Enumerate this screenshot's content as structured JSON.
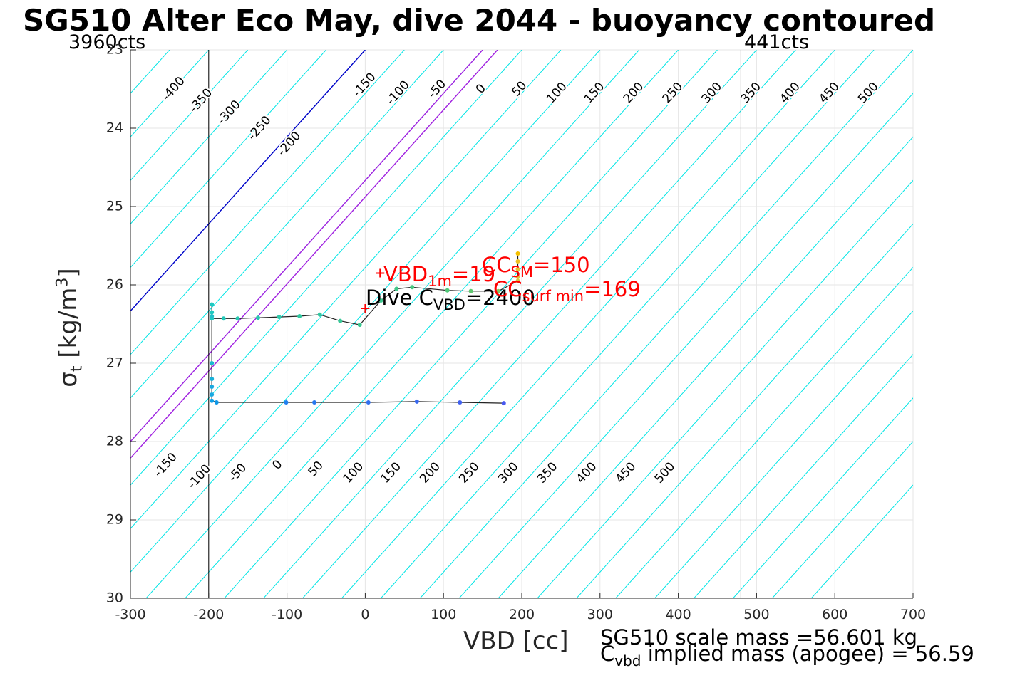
{
  "title": "SG510 Alter Eco May, dive 2044 - buoyancy contoured",
  "vbd_left_label": "3960cts",
  "vbd_right_label": "441cts",
  "xlabel": "VBD [cc]",
  "ylabel": {
    "base": "σ",
    "sub": "t",
    "unit_pre": "[kg/m",
    "unit_sup": "3",
    "unit_post": "]"
  },
  "footer": {
    "scale_mass": "SG510 scale mass =56.601 kg",
    "implied_pre": "C",
    "implied_sub": "vbd",
    "implied_post": " implied mass (apogee) = 56.59"
  },
  "annotations": {
    "vbd1m_pre": "VBD",
    "vbd1m_sub": "1m",
    "vbd1m_post": "=19",
    "dive_pre": "Dive C",
    "dive_sub": "VBD",
    "dive_post": "=2400",
    "ccsm_pre": "CC",
    "ccsm_sub": "SM",
    "ccsm_post": "=150",
    "ccsurf_pre": "CC",
    "ccsurf_sub": "surf min",
    "ccsurf_post": "=169"
  },
  "colors": {
    "contour": "#00e5e5",
    "zero_line": "#0000c8",
    "cc_line": "#a020e0",
    "annotation": "#ff0000",
    "trace": "#222222",
    "grid": "#e6e6e6"
  },
  "chart_data": {
    "type": "scatter",
    "xlim": [
      -300,
      700
    ],
    "ylim": [
      23,
      30
    ],
    "y_reversed": true,
    "xticks": [
      -300,
      -200,
      -100,
      0,
      100,
      200,
      300,
      400,
      500,
      600,
      700
    ],
    "xtick_labels": [
      "-300",
      "-200",
      "-100",
      "0",
      "100",
      "200",
      "300",
      "400",
      "500",
      "600",
      "700"
    ],
    "yticks": [
      23,
      24,
      25,
      26,
      27,
      28,
      29,
      30
    ],
    "ytick_labels": [
      "23",
      "24",
      "25",
      "26",
      "27",
      "28",
      "29",
      "30"
    ],
    "grid": true,
    "contour_slope_cc_per_sigma": 90,
    "contour_levels": [
      -500,
      -450,
      -400,
      -350,
      -300,
      -250,
      -200,
      -150,
      -100,
      -50,
      0,
      50,
      100,
      150,
      200,
      250,
      300,
      350,
      400,
      450,
      500,
      550,
      600,
      650,
      700,
      750,
      800,
      850,
      900,
      950,
      1000,
      1050,
      1100,
      1150,
      1200
    ],
    "zero_contour_level": 0,
    "cc_contour_levels": [
      150,
      169
    ],
    "vbd_limit_lines": [
      -200,
      480
    ],
    "contour_labels_top": [
      {
        "level": -400,
        "text": "-400",
        "x": -245,
        "y": 23.5
      },
      {
        "level": -350,
        "text": "-350",
        "x": -210,
        "y": 23.65
      },
      {
        "level": -300,
        "text": "-300",
        "x": -174,
        "y": 23.8
      },
      {
        "level": -250,
        "text": "-250",
        "x": -135,
        "y": 24.0
      },
      {
        "level": -200,
        "text": "-200",
        "x": -97,
        "y": 24.2
      },
      {
        "level": -150,
        "text": "-150",
        "x": -1,
        "y": 23.45
      },
      {
        "level": -100,
        "text": "-100",
        "x": 42,
        "y": 23.55
      },
      {
        "level": -50,
        "text": "-50",
        "x": 92,
        "y": 23.5
      },
      {
        "level": 0,
        "text": "0",
        "x": 148,
        "y": 23.5
      },
      {
        "level": 50,
        "text": "50",
        "x": 197,
        "y": 23.5
      },
      {
        "level": 100,
        "text": "100",
        "x": 245,
        "y": 23.55
      },
      {
        "level": 150,
        "text": "150",
        "x": 293,
        "y": 23.55
      },
      {
        "level": 200,
        "text": "200",
        "x": 343,
        "y": 23.55
      },
      {
        "level": 250,
        "text": "250",
        "x": 393,
        "y": 23.55
      },
      {
        "level": 300,
        "text": "300",
        "x": 443,
        "y": 23.55
      },
      {
        "level": 350,
        "text": "350",
        "x": 493,
        "y": 23.55
      },
      {
        "level": 400,
        "text": "400",
        "x": 543,
        "y": 23.55
      },
      {
        "level": 450,
        "text": "450",
        "x": 593,
        "y": 23.55
      },
      {
        "level": 500,
        "text": "500",
        "x": 643,
        "y": 23.55
      }
    ],
    "contour_labels_bottom": [
      {
        "level": -150,
        "text": "-150",
        "x": -255,
        "y": 28.3
      },
      {
        "level": -100,
        "text": "-100",
        "x": -212,
        "y": 28.45
      },
      {
        "level": -50,
        "text": "-50",
        "x": -163,
        "y": 28.4
      },
      {
        "level": 0,
        "text": "0",
        "x": -112,
        "y": 28.3
      },
      {
        "level": 50,
        "text": "50",
        "x": -63,
        "y": 28.35
      },
      {
        "level": 100,
        "text": "100",
        "x": -15,
        "y": 28.4
      },
      {
        "level": 150,
        "text": "150",
        "x": 33,
        "y": 28.4
      },
      {
        "level": 200,
        "text": "200",
        "x": 83,
        "y": 28.4
      },
      {
        "level": 250,
        "text": "250",
        "x": 133,
        "y": 28.4
      },
      {
        "level": 300,
        "text": "300",
        "x": 183,
        "y": 28.4
      },
      {
        "level": 350,
        "text": "350",
        "x": 233,
        "y": 28.4
      },
      {
        "level": 400,
        "text": "400",
        "x": 283,
        "y": 28.4
      },
      {
        "level": 450,
        "text": "450",
        "x": 333,
        "y": 28.4
      },
      {
        "level": 500,
        "text": "500",
        "x": 383,
        "y": 28.4
      }
    ],
    "dive_trace": [
      {
        "x": 195,
        "y": 25.6,
        "color": "#f5c000"
      },
      {
        "x": 195,
        "y": 25.7,
        "color": "#f0c020"
      },
      {
        "x": 195,
        "y": 25.8,
        "color": "#e8c030"
      },
      {
        "x": 195,
        "y": 25.9,
        "color": "#e0c040"
      },
      {
        "x": 195,
        "y": 25.95,
        "color": "#d8c040"
      },
      {
        "x": 170,
        "y": 26.08,
        "color": "#80c860"
      },
      {
        "x": 135,
        "y": 26.08,
        "color": "#60c870"
      },
      {
        "x": 105,
        "y": 26.07,
        "color": "#50c878"
      },
      {
        "x": 60,
        "y": 26.03,
        "color": "#48c880"
      },
      {
        "x": 40,
        "y": 26.05,
        "color": "#40c888"
      },
      {
        "x": 20,
        "y": 26.2,
        "color": "#40c890"
      },
      {
        "x": -7,
        "y": 26.51,
        "color": "#38c890"
      },
      {
        "x": -32,
        "y": 26.46,
        "color": "#38c898"
      },
      {
        "x": -58,
        "y": 26.38,
        "color": "#30c8a0"
      },
      {
        "x": -84,
        "y": 26.4,
        "color": "#30c8a0"
      },
      {
        "x": -110,
        "y": 26.41,
        "color": "#30c8a8"
      },
      {
        "x": -137,
        "y": 26.42,
        "color": "#28c8b0"
      },
      {
        "x": -163,
        "y": 26.43,
        "color": "#28c8b0"
      },
      {
        "x": -181,
        "y": 26.43,
        "color": "#20c8b8"
      },
      {
        "x": -196,
        "y": 26.43,
        "color": "#20c8c0"
      },
      {
        "x": -196,
        "y": 26.35,
        "color": "#20c8c0"
      },
      {
        "x": -196,
        "y": 26.25,
        "color": "#20c8c0"
      },
      {
        "x": -196,
        "y": 26.4,
        "color": "#20c0c8"
      },
      {
        "x": -196,
        "y": 27.0,
        "color": "#18b8d0"
      },
      {
        "x": -196,
        "y": 27.2,
        "color": "#18b0d8"
      },
      {
        "x": -196,
        "y": 27.3,
        "color": "#18a8e0"
      },
      {
        "x": -196,
        "y": 27.4,
        "color": "#18a8e0"
      },
      {
        "x": -196,
        "y": 27.48,
        "color": "#10a0e8"
      },
      {
        "x": -190,
        "y": 27.5,
        "color": "#1098e8"
      },
      {
        "x": -101,
        "y": 27.5,
        "color": "#2080f0"
      },
      {
        "x": -65,
        "y": 27.5,
        "color": "#2878f0"
      },
      {
        "x": 4,
        "y": 27.5,
        "color": "#3070f0"
      },
      {
        "x": 66,
        "y": 27.49,
        "color": "#3868f0"
      },
      {
        "x": 121,
        "y": 27.5,
        "color": "#4060f0"
      },
      {
        "x": 177,
        "y": 27.51,
        "color": "#4858f0"
      }
    ],
    "markers": [
      {
        "name": "vbd-1m",
        "x": 19,
        "y": 25.85
      },
      {
        "name": "dive-cvbd",
        "x": 0,
        "y": 26.3
      }
    ]
  }
}
